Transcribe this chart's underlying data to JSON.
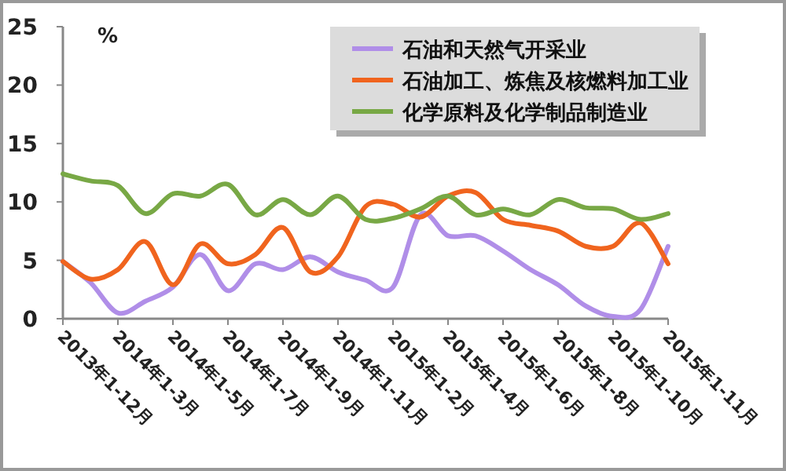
{
  "chart_data": {
    "type": "line",
    "ylabel": "%",
    "categories": [
      "2013年1-12月",
      null,
      "2014年1-3月",
      null,
      "2014年1-5月",
      null,
      "2014年1-7月",
      null,
      "2014年1-9月",
      null,
      "2014年1-11月",
      null,
      "2015年1-2月",
      null,
      "2015年1-4月",
      null,
      "2015年1-6月",
      null,
      "2015年1-8月",
      null,
      "2015年1-10月",
      null,
      "2015年1-11月"
    ],
    "ylim": [
      0,
      25
    ],
    "yticks": [
      0,
      5,
      10,
      15,
      20,
      25
    ],
    "grid": false,
    "legend": "top right",
    "marker": "none",
    "line_style": "solid",
    "series": [
      {
        "name": "石油和天然气开采业",
        "color": "#b08ee8",
        "values": [
          4.9,
          3.1,
          0.5,
          1.5,
          2.7,
          5.5,
          2.4,
          4.7,
          4.2,
          5.3,
          4.0,
          3.3,
          2.7,
          8.9,
          7.1,
          7.1,
          5.8,
          4.2,
          2.9,
          1.1,
          0.2,
          0.8,
          6.2
        ]
      },
      {
        "name": "石油加工、炼焦及核燃料加工业",
        "color": "#f0641e",
        "values": [
          4.9,
          3.4,
          4.2,
          6.6,
          2.9,
          6.4,
          4.7,
          5.5,
          7.8,
          4.0,
          5.3,
          9.6,
          9.8,
          8.7,
          10.5,
          10.8,
          8.5,
          8.0,
          7.5,
          6.2,
          6.2,
          8.2,
          4.7
        ]
      },
      {
        "name": "化学原料及化学制品制造业",
        "color": "#78a845",
        "values": [
          12.4,
          11.8,
          11.4,
          9.0,
          10.7,
          10.5,
          11.5,
          8.9,
          10.2,
          8.9,
          10.5,
          8.5,
          8.6,
          9.4,
          10.5,
          8.9,
          9.4,
          8.9,
          10.2,
          9.5,
          9.4,
          8.5,
          9.0
        ]
      }
    ]
  }
}
